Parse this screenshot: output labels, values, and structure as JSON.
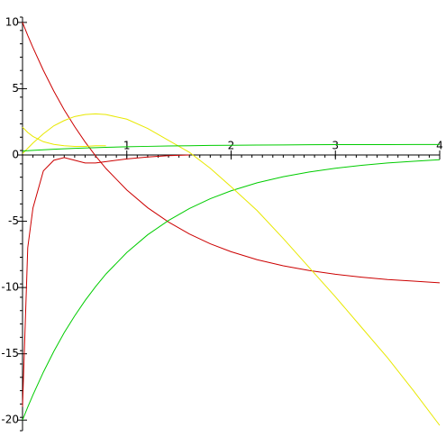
{
  "chart_data": {
    "type": "line",
    "x": [
      0,
      0.05,
      0.1,
      0.2,
      0.3,
      0.4,
      0.5,
      0.6,
      0.7,
      0.8,
      1.0,
      1.2,
      1.4,
      1.6,
      1.8,
      2.0,
      2.25,
      2.5,
      2.75,
      3,
      3.25,
      3.5,
      3.75,
      4
    ],
    "xlim": [
      0,
      4
    ],
    "ylim": [
      -20.8,
      10.4
    ],
    "xticks": [
      1,
      2,
      3,
      4
    ],
    "yticks": [
      10,
      5,
      0,
      -5,
      -10,
      -15,
      -20
    ],
    "series": [
      {
        "color": "#cc0000",
        "values": [
          10,
          9.02,
          8.1,
          6.38,
          4.82,
          3.4,
          2.14,
          0.98,
          -0.06,
          -1.02,
          -2.64,
          -3.98,
          -5.06,
          -5.96,
          -6.7,
          -7.3,
          -7.9,
          -8.36,
          -8.72,
          -9.0,
          -9.22,
          -9.4,
          -9.52,
          -9.64
        ]
      },
      {
        "color": "#00cc00",
        "values": [
          -20,
          -19.02,
          -18.1,
          -16.38,
          -14.82,
          -13.4,
          -12.14,
          -10.98,
          -9.94,
          -8.98,
          -7.36,
          -6.02,
          -4.94,
          -4.04,
          -3.3,
          -2.7,
          -2.1,
          -1.64,
          -1.28,
          -1.0,
          -0.78,
          -0.6,
          -0.48,
          -0.36
        ]
      },
      {
        "color": "#e8e800",
        "values": [
          0.1,
          0.5,
          0.9,
          1.6,
          2.2,
          2.6,
          2.9,
          3.05,
          3.1,
          3.05,
          2.7,
          2.0,
          1.1,
          0.2,
          -1.0,
          -2.4,
          -4.2,
          -6.3,
          -8.5,
          -10.7,
          -13.0,
          -15.3,
          -17.8,
          -20.4
        ]
      },
      {
        "color": "#00cc00",
        "values": [
          0.3,
          0.32,
          0.35,
          0.39,
          0.43,
          0.47,
          0.5,
          0.53,
          0.55,
          0.58,
          0.62,
          0.65,
          0.68,
          0.7,
          0.72,
          0.73,
          0.75,
          0.76,
          0.77,
          0.78,
          0.78,
          0.78,
          0.79,
          0.79
        ]
      },
      {
        "color": "#e8e800",
        "values": [
          2.1,
          1.7,
          1.4,
          1.0,
          0.8,
          0.7,
          0.65,
          0.65,
          0.7,
          0.7,
          null,
          null,
          null,
          null,
          null,
          null,
          null,
          null,
          null,
          null,
          null,
          null,
          null,
          null
        ]
      },
      {
        "color": "#cc0000",
        "values": [
          -19,
          -7,
          -4,
          -1.2,
          -0.4,
          -0.2,
          -0.4,
          -0.6,
          -0.6,
          -0.5,
          -0.3,
          -0.15,
          -0.05,
          0,
          null,
          null,
          null,
          null,
          null,
          null,
          null,
          null,
          null,
          null
        ]
      }
    ]
  }
}
